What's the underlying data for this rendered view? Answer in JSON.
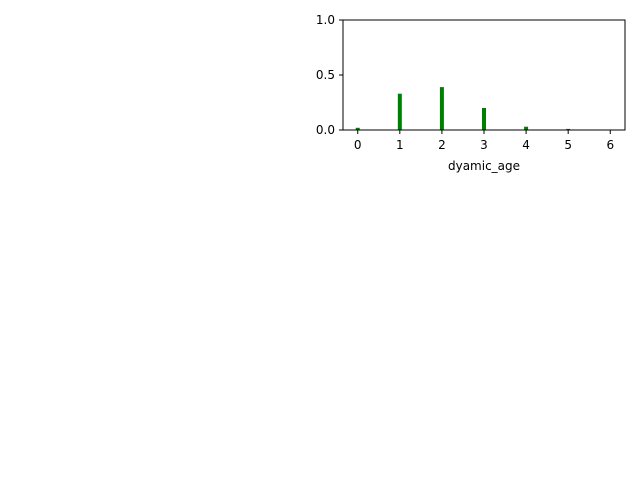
{
  "chart_data": {
    "type": "bar",
    "x": [
      0,
      1,
      2,
      3,
      4,
      5,
      6
    ],
    "values": [
      0.02,
      0.33,
      0.39,
      0.2,
      0.03,
      0.01,
      0.0
    ],
    "xlabel": "dyamic_age",
    "ylabel": "",
    "title": "",
    "xlim": [
      -0.35,
      6.35
    ],
    "ylim": [
      0.0,
      1.0
    ],
    "xticks": [
      "0",
      "1",
      "2",
      "3",
      "4",
      "5",
      "6"
    ],
    "yticks": [
      "0.0",
      "0.5",
      "1.0"
    ],
    "bar_color": "#008000",
    "grid": false,
    "legend": "none"
  }
}
